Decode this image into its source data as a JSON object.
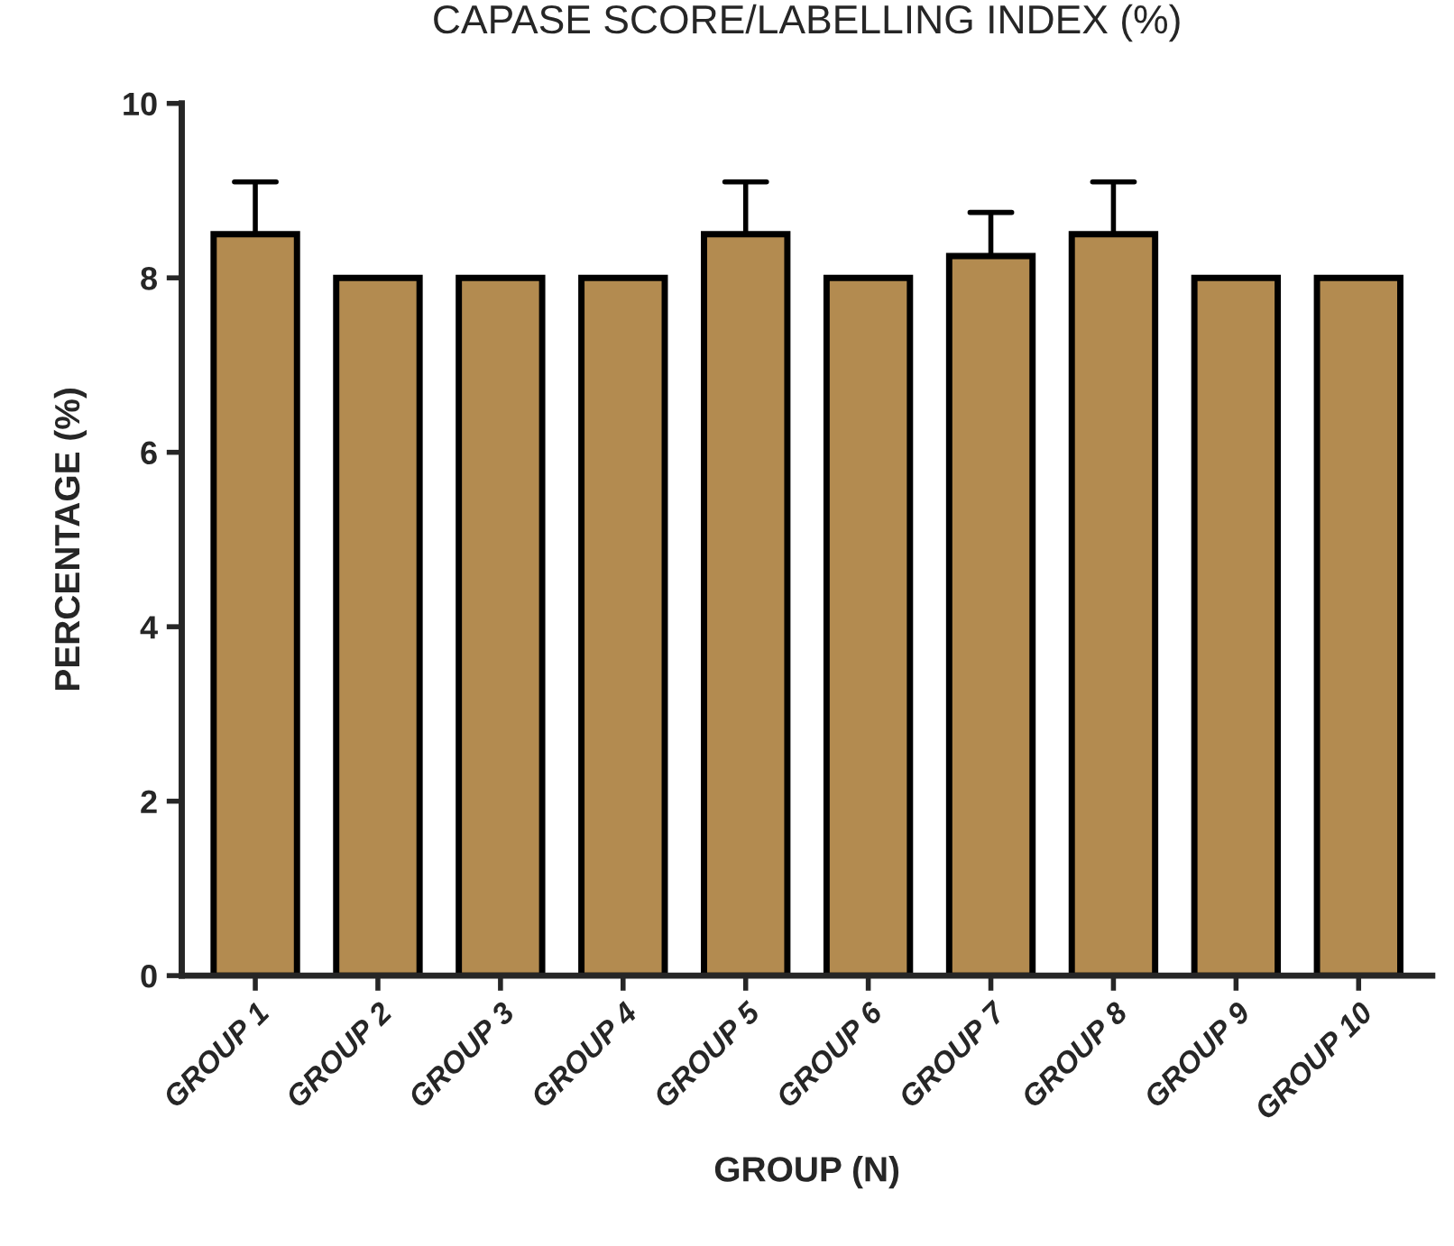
{
  "chart_data": {
    "type": "bar",
    "title": "CAPASE SCORE/LABELLING INDEX (%)",
    "xlabel": "GROUP (N)",
    "ylabel": "PERCENTAGE (%)",
    "categories": [
      "GROUP 1",
      "GROUP 2",
      "GROUP 3",
      "GROUP 4",
      "GROUP 5",
      "GROUP 6",
      "GROUP 7",
      "GROUP 8",
      "GROUP 9",
      "GROUP 10"
    ],
    "values": [
      8.5,
      8,
      8,
      8,
      8.5,
      8,
      8.25,
      8.5,
      8,
      8
    ],
    "errors": [
      [
        8.5,
        9.1
      ],
      null,
      null,
      null,
      [
        8.5,
        9.1
      ],
      null,
      [
        8.25,
        8.75
      ],
      [
        8.5,
        9.1
      ],
      null,
      null
    ],
    "color": "#b38b50",
    "ylim": [
      0,
      10
    ],
    "yticks": [
      0,
      2,
      4,
      6,
      8,
      10
    ],
    "grid": false
  }
}
